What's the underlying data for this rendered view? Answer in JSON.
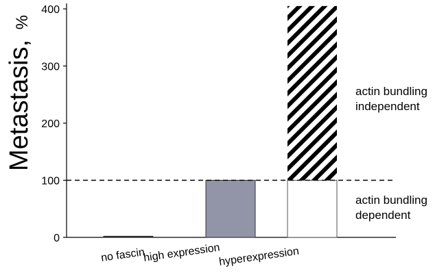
{
  "chart_data": {
    "type": "bar",
    "ylabel": "Metastasis,",
    "ylabel_unit": "%",
    "ylim": [
      0,
      400
    ],
    "yticks": [
      "0",
      "100",
      "200",
      "300",
      "400"
    ],
    "categories": [
      "no fascin",
      "high expression",
      "hyperexpression"
    ],
    "values": [
      2,
      100,
      405
    ],
    "segments": [
      {
        "category": "no fascin",
        "from": 0,
        "to": 2,
        "fill": "#111111",
        "pattern": "solid"
      },
      {
        "category": "high expression",
        "from": 0,
        "to": 100,
        "fill": "#9294a8",
        "pattern": "solid"
      },
      {
        "category": "hyperexpression",
        "from": 0,
        "to": 100,
        "fill": "#ffffff",
        "pattern": "outline"
      },
      {
        "category": "hyperexpression",
        "from": 100,
        "to": 405,
        "fill": "#000000",
        "pattern": "diagonal-hatch"
      }
    ],
    "reference_line": {
      "y": 100,
      "style": "dashed"
    },
    "annotations": [
      {
        "lines": [
          "actin bundling",
          "independent"
        ],
        "region": "above"
      },
      {
        "lines": [
          "actin bundling",
          "dependent"
        ],
        "region": "below"
      }
    ],
    "grid": false,
    "colors": {
      "axis": "#000000",
      "high_expression_bar": "#9294a8",
      "hatch": "#000000",
      "outline_bar": "#555555"
    }
  }
}
